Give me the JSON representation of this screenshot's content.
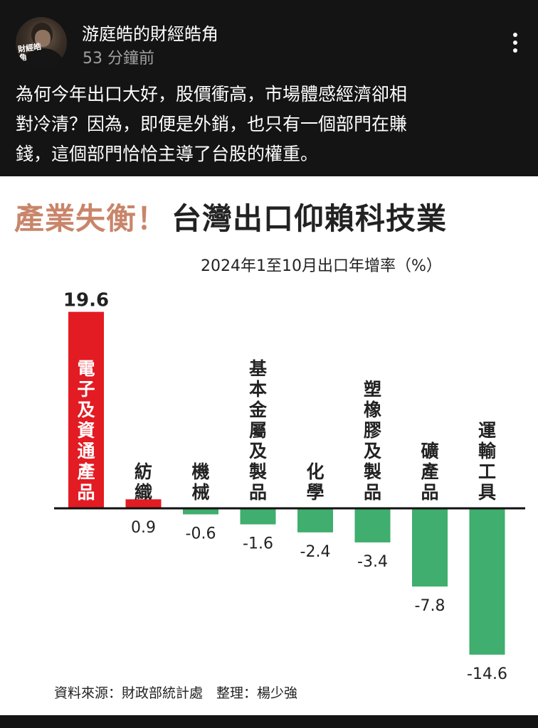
{
  "post": {
    "author": "游庭皓的財經皓角",
    "time": "53 分鐘前",
    "avatar_logo_text": "財經皓角",
    "menu_icon": "more-vertical-icon",
    "text_lines": [
      "為何今年出口大好，股價衝高，市場體感經濟卻相",
      "對冷清？因為，即便是外銷，也只有一個部門在賺",
      "錢，這個部門恰恰主導了台股的權重。"
    ]
  },
  "image": {
    "title_part1": "產業失衡！",
    "title_part2": "台灣出口仰賴科技業",
    "source": "資料來源：財政部統計處　整理：楊少強"
  },
  "chart_data": {
    "type": "bar",
    "title": "產業失衡！台灣出口仰賴科技業",
    "subtitle": "2024年1至10月出口年增率（%）",
    "categories": [
      "電子及資通產品",
      "紡織",
      "機械",
      "基本金屬及製品",
      "化學",
      "塑橡膠及製品",
      "礦產品",
      "運輸工具"
    ],
    "values": [
      19.6,
      0.9,
      -0.6,
      -1.6,
      -2.4,
      -3.4,
      -7.8,
      -14.6
    ],
    "value_labels": [
      "19.6",
      "0.9",
      "-0.6",
      "-1.6",
      "-2.4",
      "-3.4",
      "-7.8",
      "-14.6"
    ],
    "colors": {
      "highlight": "#e31b23",
      "positive": "#e31b23",
      "negative": "#3fae6e"
    },
    "ylim": [
      -14.6,
      19.6
    ],
    "grid": false,
    "legend": "none"
  }
}
